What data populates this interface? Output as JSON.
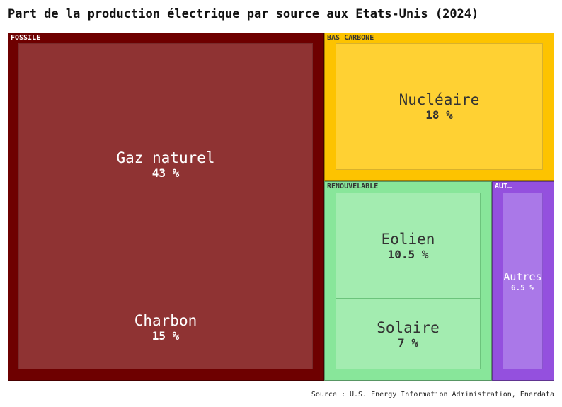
{
  "chart_data": {
    "type": "treemap",
    "title": "Part de la production électrique par source aux Etats-Unis (2024)",
    "source": "Source : U.S. Energy Information Administration, Enerdata",
    "unit": "%",
    "groups": [
      {
        "name": "FOSSILE",
        "color": "#6e0000",
        "children": [
          {
            "name": "Gaz naturel",
            "value": 43,
            "label": "43 %",
            "color": "#8f3333"
          },
          {
            "name": "Charbon",
            "value": 15,
            "label": "15 %",
            "color": "#8f3333"
          }
        ]
      },
      {
        "name": "BAS CARBONE",
        "color": "#fdc300",
        "children": [
          {
            "name": "Nucléaire",
            "value": 18,
            "label": "18 %",
            "color": "#ffd133"
          }
        ]
      },
      {
        "name": "RENOUVELABLE",
        "color": "#88e69a",
        "children": [
          {
            "name": "Eolien",
            "value": 10.5,
            "label": "10.5 %",
            "color": "#a3ecb0"
          },
          {
            "name": "Solaire",
            "value": 7,
            "label": "7 %",
            "color": "#a3ecb0"
          }
        ]
      },
      {
        "name": "AUT…",
        "color": "#9450de",
        "children": [
          {
            "name": "Autres",
            "value": 6.5,
            "label": "6.5 %",
            "color": "#aa78e8"
          }
        ]
      }
    ]
  }
}
